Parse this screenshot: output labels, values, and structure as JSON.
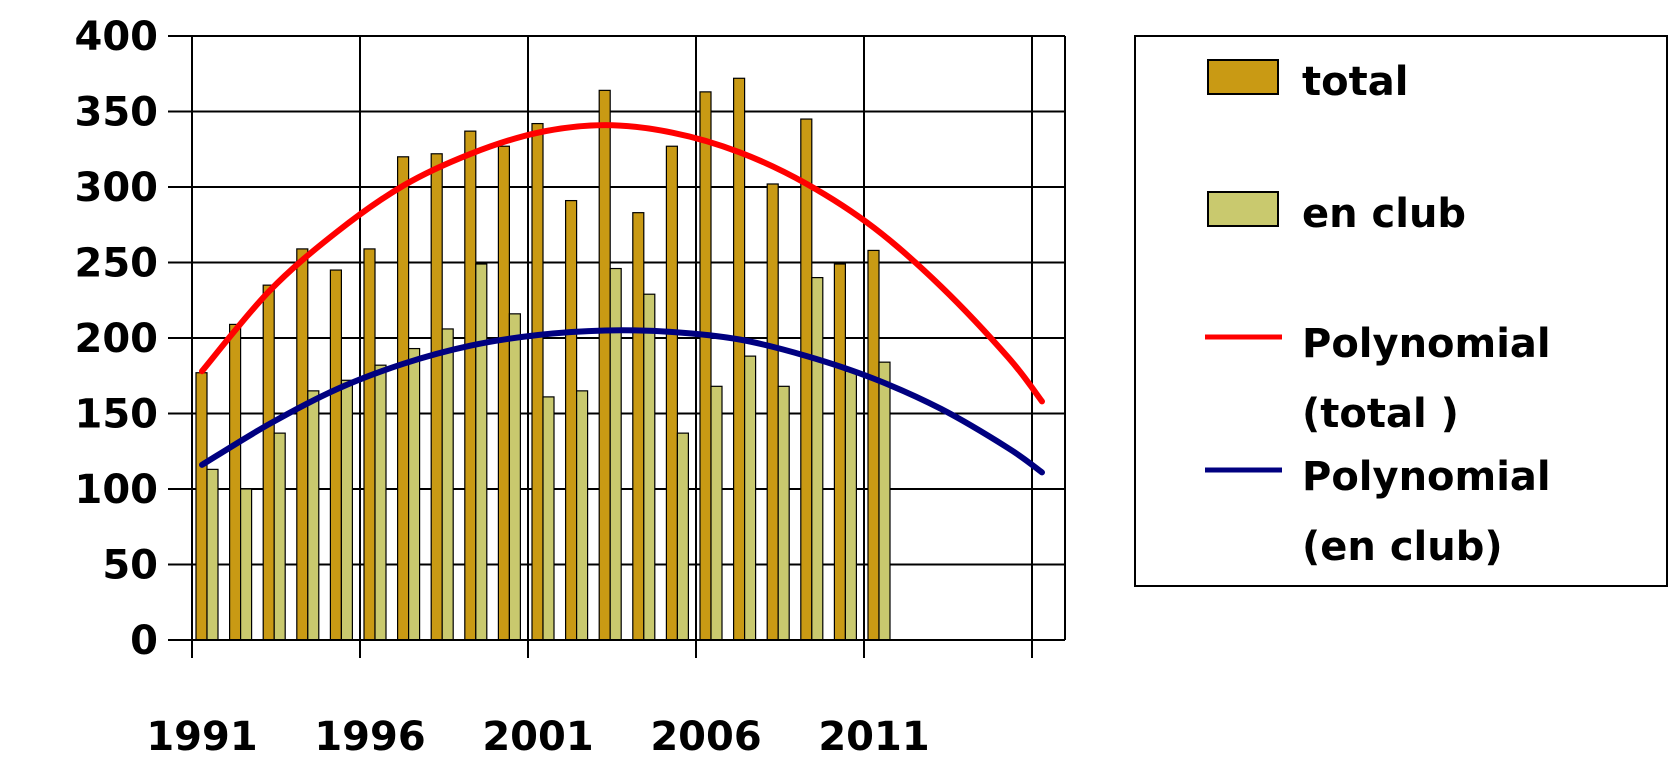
{
  "chart_data": {
    "type": "bar",
    "title": "",
    "xlabel": "",
    "ylabel": "",
    "x": [
      1991,
      1992,
      1993,
      1994,
      1995,
      1996,
      1997,
      1998,
      1999,
      2000,
      2001,
      2002,
      2003,
      2004,
      2005,
      2006,
      2007,
      2008,
      2009,
      2010,
      2011
    ],
    "x_tick_labels": [
      "1991",
      "1996",
      "2001",
      "2006",
      "2011"
    ],
    "xlim": [
      1991,
      2016
    ],
    "ylim": [
      0,
      400
    ],
    "y_ticks": [
      0,
      50,
      100,
      150,
      200,
      250,
      300,
      350,
      400
    ],
    "grid": true,
    "legend_position": "right",
    "series": [
      {
        "name": "total",
        "kind": "bar",
        "color": "#C99A14",
        "values": [
          177,
          209,
          235,
          259,
          245,
          259,
          320,
          322,
          337,
          327,
          342,
          291,
          364,
          283,
          327,
          363,
          372,
          302,
          345,
          249,
          258
        ]
      },
      {
        "name": "en club",
        "kind": "bar",
        "color": "#C9C96E",
        "values": [
          113,
          100,
          137,
          165,
          172,
          182,
          193,
          206,
          249,
          216,
          161,
          165,
          246,
          229,
          137,
          168,
          188,
          168,
          240,
          178,
          184
        ]
      },
      {
        "name": "Polynomial (total )",
        "kind": "trendline",
        "color": "#FF0000",
        "x": [
          1991,
          1993,
          1995,
          1997,
          1999,
          2001,
          2003,
          2005,
          2007,
          2009,
          2011,
          2013,
          2015,
          2016
        ],
        "values": [
          178,
          231,
          270,
          301,
          322,
          336,
          341,
          336,
          323,
          302,
          273,
          234,
          187,
          158
        ]
      },
      {
        "name": "Polynomial (en club)",
        "kind": "trendline",
        "color": "#000080",
        "x": [
          1991,
          1993,
          1995,
          1997,
          1999,
          2001,
          2003,
          2005,
          2007,
          2009,
          2011,
          2013,
          2015,
          2016
        ],
        "values": [
          116,
          143,
          166,
          183,
          195,
          202,
          205,
          204,
          199,
          188,
          173,
          153,
          127,
          111
        ]
      }
    ]
  },
  "legend": {
    "items": [
      {
        "label": "total",
        "kind": "box",
        "color": "#C99A14"
      },
      {
        "label": "en club",
        "kind": "box",
        "color": "#C9C96E"
      },
      {
        "label": "Polynomial",
        "label2": "(total )",
        "kind": "line",
        "color": "#FF0000"
      },
      {
        "label": "Polynomial",
        "label2": "(en club)",
        "kind": "line",
        "color": "#000080"
      }
    ]
  }
}
